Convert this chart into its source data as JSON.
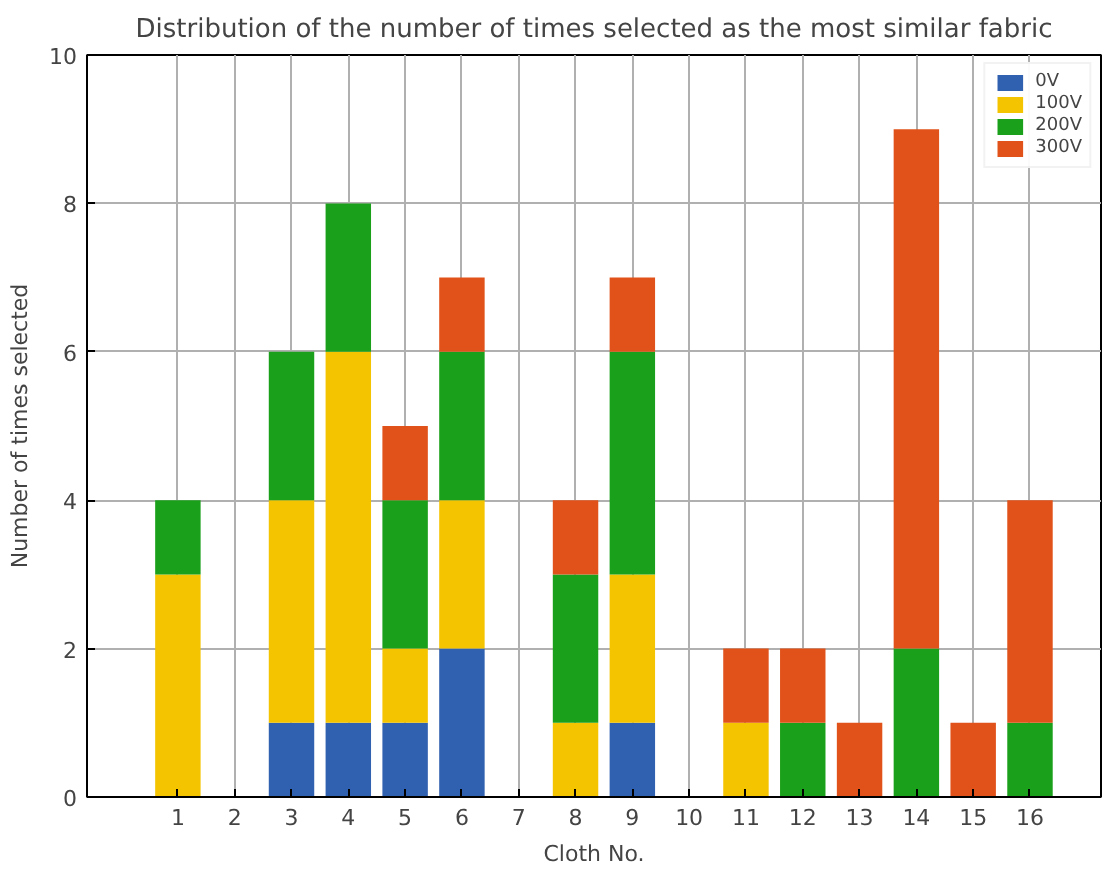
{
  "chart_data": {
    "type": "bar",
    "title": "Distribution of the number of times selected as the most similar fabric",
    "xlabel": "Cloth No.",
    "ylabel": "Number of times selected",
    "x": [
      1,
      2,
      3,
      4,
      5,
      6,
      7,
      8,
      9,
      10,
      11,
      12,
      13,
      14,
      15,
      16
    ],
    "stacked": true,
    "series": [
      {
        "name": "0V",
        "color": "#3060b0",
        "values": [
          0,
          0,
          1,
          1,
          1,
          2,
          0,
          0,
          1,
          0,
          0,
          0,
          0,
          0,
          0,
          0
        ]
      },
      {
        "name": "100V",
        "color": "#f5c400",
        "values": [
          3,
          0,
          3,
          5,
          1,
          2,
          0,
          1,
          2,
          0,
          1,
          0,
          0,
          0,
          0,
          0
        ]
      },
      {
        "name": "200V",
        "color": "#1aa01a",
        "values": [
          1,
          0,
          2,
          2,
          2,
          2,
          0,
          2,
          3,
          0,
          0,
          1,
          0,
          2,
          0,
          1
        ]
      },
      {
        "name": "300V",
        "color": "#e0521a",
        "values": [
          0,
          0,
          0,
          0,
          1,
          1,
          0,
          1,
          1,
          0,
          1,
          1,
          1,
          7,
          1,
          3
        ]
      }
    ],
    "xlim": [
      -0.6,
      17.25
    ],
    "xticks": [
      1,
      2,
      3,
      4,
      5,
      6,
      7,
      8,
      9,
      10,
      11,
      12,
      13,
      14,
      15,
      16
    ],
    "ylim": [
      0,
      10
    ],
    "yticks": [
      0,
      2,
      4,
      6,
      8,
      10
    ],
    "grid": true,
    "legend": "top right"
  }
}
